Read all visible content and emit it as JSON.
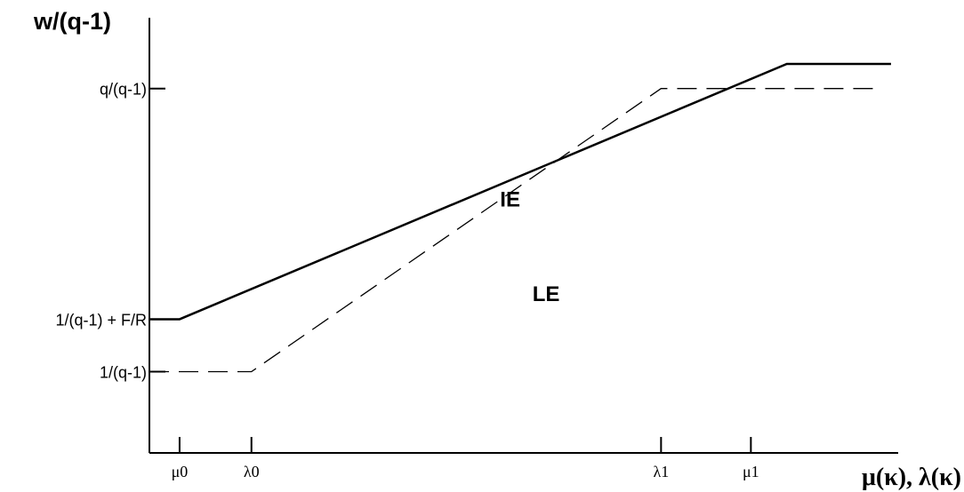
{
  "chart_data": {
    "type": "line",
    "ylabel": "w/(q-1)",
    "xlabel": "μ(κ), λ(κ)",
    "x_ticks": [
      {
        "key": "mu0",
        "label": "μ0",
        "value": 0.0
      },
      {
        "key": "lambda0",
        "label": "λ0",
        "value": 1.0
      },
      {
        "key": "lambda1",
        "label": "λ1",
        "value": 6.7
      },
      {
        "key": "mu1",
        "label": "μ1",
        "value": 7.95
      }
    ],
    "y_ticks": [
      {
        "key": "one_over",
        "label": "1/(q-1)",
        "value": 0.0
      },
      {
        "key": "one_over_plus",
        "label": "1/(q-1) + F/R",
        "value": 1.0
      },
      {
        "key": "q_over",
        "label": "q/(q-1)",
        "value": 5.4
      }
    ],
    "xlim": [
      -0.42,
      10.0
    ],
    "ylim": [
      -1.55,
      6.75
    ],
    "series": [
      {
        "name": "IE",
        "style": "solid",
        "x": [
          -0.42,
          0.0,
          8.45,
          9.9
        ],
        "y": [
          1.0,
          1.0,
          5.87,
          5.87
        ]
      },
      {
        "name": "LE",
        "style": "dashed",
        "x": [
          -0.42,
          1.0,
          6.7,
          9.65
        ],
        "y": [
          0.0,
          0.0,
          5.4,
          5.4
        ]
      }
    ],
    "grid": false,
    "legend": "inline"
  }
}
